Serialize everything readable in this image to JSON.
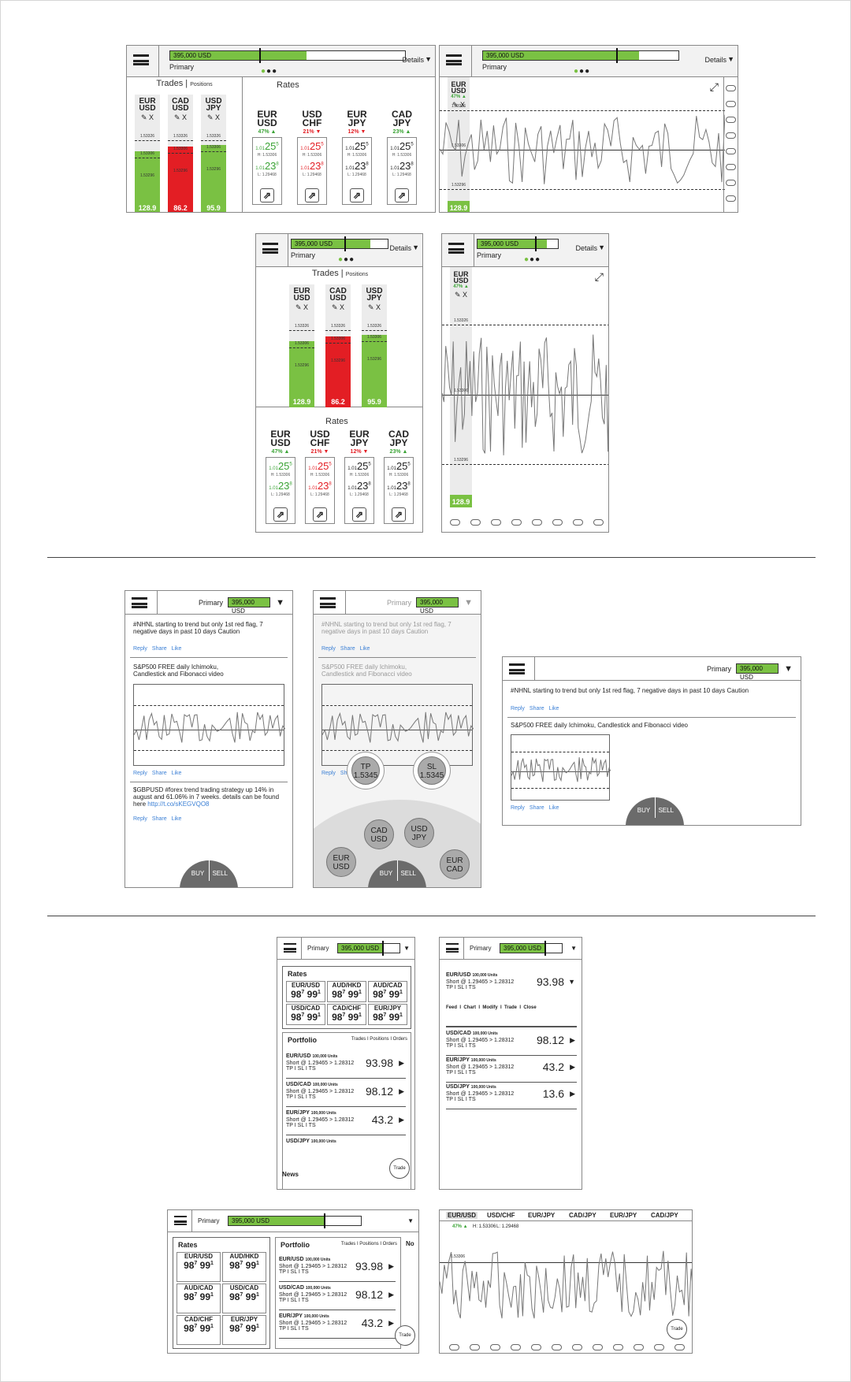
{
  "common": {
    "balance": "395,000 USD",
    "account": "Primary",
    "details": "Details",
    "dots_active": "●",
    "dots_rest": "●●"
  },
  "trades": {
    "title": "Trades",
    "sub": "Positions",
    "cols": [
      {
        "pair1": "EUR",
        "pair2": "USD",
        "lvl_top": "1.53326",
        "lvl_mid": "1.53306",
        "lvl_low": "1.53296",
        "value": "128.9",
        "color": "g"
      },
      {
        "pair1": "CAD",
        "pair2": "USD",
        "lvl_top": "1.53326",
        "lvl_mid": "1.53306",
        "lvl_low": "1.53296",
        "value": "86.2",
        "color": "r"
      },
      {
        "pair1": "USD",
        "pair2": "JPY",
        "lvl_top": "1.53326",
        "lvl_mid": "1.53306",
        "lvl_low": "1.53296",
        "value": "95.9",
        "color": "g"
      }
    ],
    "edit": "✎ X"
  },
  "rates": {
    "title": "Rates",
    "items": [
      {
        "p1": "EUR",
        "p2": "USD",
        "chg": "47% ▲",
        "dir": "up",
        "bid_small": "1.01",
        "bid_big": "25",
        "bid_sup": "5",
        "h": "H: 1.53306",
        "ask_small": "1.01",
        "ask_big": "23",
        "ask_sup": "8",
        "l": "L: 1.29468",
        "bc": "green",
        "ac": "green"
      },
      {
        "p1": "USD",
        "p2": "CHF",
        "chg": "21% ▼",
        "dir": "dn",
        "bid_small": "1.01",
        "bid_big": "25",
        "bid_sup": "5",
        "h": "H: 1.53306",
        "ask_small": "1.01",
        "ask_big": "23",
        "ask_sup": "8",
        "l": "L: 1.29468",
        "bc": "red",
        "ac": "red"
      },
      {
        "p1": "EUR",
        "p2": "JPY",
        "chg": "12% ▼",
        "dir": "dn",
        "bid_small": "1.01",
        "bid_big": "25",
        "bid_sup": "5",
        "h": "H: 1.53306",
        "ask_small": "1.01",
        "ask_big": "23",
        "ask_sup": "8",
        "l": "L: 1.29468",
        "bc": "",
        "ac": ""
      },
      {
        "p1": "CAD",
        "p2": "JPY",
        "chg": "23% ▲",
        "dir": "up",
        "bid_small": "1.01",
        "bid_big": "25",
        "bid_sup": "5",
        "h": "H: 1.53306",
        "ask_small": "1.01",
        "ask_big": "23",
        "ask_sup": "8",
        "l": "L: 1.29468",
        "bc": "",
        "ac": ""
      }
    ]
  },
  "chartpane": {
    "pair1": "EUR",
    "pair2": "USD",
    "chg": "47% ▲",
    "lvl_top": "1.53326",
    "lvl_mid": "1.53306",
    "lvl_low": "1.53296",
    "value": "128.9",
    "expand_icon": "⤢"
  },
  "feed": {
    "posts": [
      {
        "text": "#NHNL starting to trend but only 1st red flag, 7 negative days in past 10 days Caution"
      },
      {
        "text": "S&P500 FREE daily Ichimoku, Candlestick and Fibonacci video"
      },
      {
        "text": "$GBPUSD #forex trend trading strategy up 14% in august and 61.06% in 7 weeks. details can be found here ",
        "link": "http://t.co/sKEGVQO8"
      }
    ],
    "actions": [
      "Reply",
      "Share",
      "Like"
    ],
    "buy": "BUY",
    "sell": "SELL",
    "tp": "TP",
    "tp_val": "1.5345",
    "sl": "SL",
    "sl_val": "1.5345",
    "bubbles": [
      "CAD USD",
      "USD JPY",
      "EUR USD",
      "EUR CAD"
    ]
  },
  "grid": {
    "title": "Rates",
    "cells": [
      {
        "p": "EUR/USD",
        "v": "98",
        "s1": "7",
        "v2": "99",
        "s2": "1"
      },
      {
        "p": "AUD/HKD",
        "v": "98",
        "s1": "7",
        "v2": "99",
        "s2": "1"
      },
      {
        "p": "AUD/CAD",
        "v": "98",
        "s1": "7",
        "v2": "99",
        "s2": "1"
      },
      {
        "p": "USD/CAD",
        "v": "98",
        "s1": "7",
        "v2": "99",
        "s2": "1"
      },
      {
        "p": "CAD/CHF",
        "v": "98",
        "s1": "7",
        "v2": "99",
        "s2": "1"
      },
      {
        "p": "EUR/JPY",
        "v": "98",
        "s1": "7",
        "v2": "99",
        "s2": "1"
      }
    ]
  },
  "portfolio": {
    "title": "Portfolio",
    "tabs": "Trades I Positions I Orders",
    "rows": [
      {
        "pair": "EUR/USD",
        "units": "100,000 Units",
        "short": "Short @ 1.29465 > 1.28312",
        "tp": "TP I SL I TS",
        "val": "93.98"
      },
      {
        "pair": "USD/CAD",
        "units": "100,000 Units",
        "short": "Short @ 1.29465 > 1.28312",
        "tp": "TP I SL I TS",
        "val": "98.12"
      },
      {
        "pair": "EUR/JPY",
        "units": "100,000 Units",
        "short": "Short @ 1.29465 > 1.28312",
        "tp": "TP I SL I TS",
        "val": "43.2"
      },
      {
        "pair": "USD/JPY",
        "units": "100,000 Units",
        "short": "Short @ 1.29465 > 1.28312",
        "tp": "TP I SL I TS",
        "val": "13.6"
      }
    ],
    "actions": "Feed  I  Chart  I  Modify  I  Trade  I  Close",
    "news": "News",
    "trade": "Trade",
    "cut": "No"
  },
  "tabs": {
    "items": [
      "EUR/USD",
      "USD/CHF",
      "EUR/JPY",
      "CAD/JPY",
      "EUR/JPY",
      "CAD/JPY"
    ],
    "chg": "47% ▲",
    "h": "H: 1.53306",
    "l": "L: 1.29468",
    "lvl": "1.53306"
  }
}
